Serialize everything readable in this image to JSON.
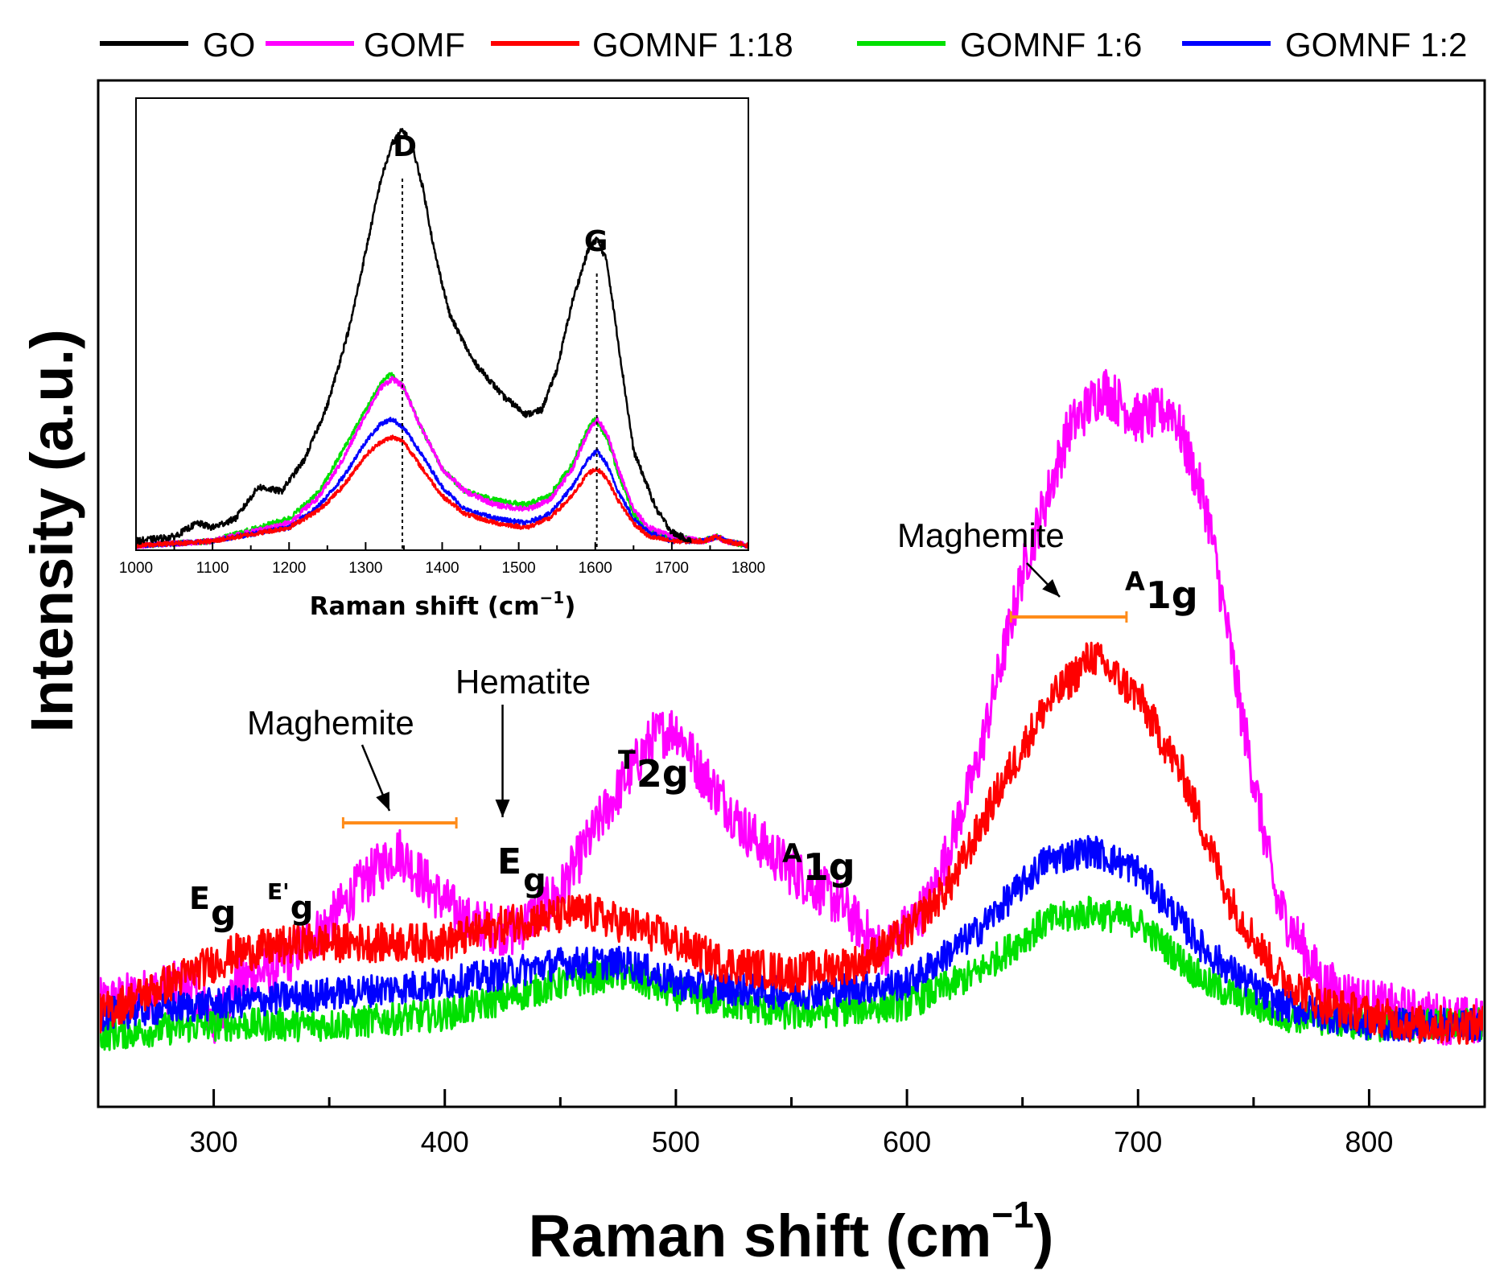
{
  "chart_data": [
    {
      "type": "line",
      "panel": "main",
      "xlabel": "Raman shift (cm",
      "xlabel_sup": "−1",
      "xlabel_close": ")",
      "ylabel": "Intensity (a.u.)",
      "xlim": [
        250,
        850
      ],
      "ylim": [
        0,
        100
      ],
      "xticks": [
        300,
        400,
        500,
        600,
        700,
        800
      ],
      "xtick_labels": [
        "300",
        "400",
        "500",
        "600",
        "700",
        "800"
      ],
      "legend_position": "top",
      "noise": [
        1.6,
        2.5,
        1.9,
        1.6,
        1.6
      ],
      "series": [
        {
          "name": "GO",
          "color": "#000000",
          "x": [],
          "y": []
        },
        {
          "name": "GOMF",
          "color": "#ff00ff",
          "x": [
            250,
            270,
            290,
            300,
            310,
            330,
            350,
            365,
            380,
            395,
            410,
            430,
            450,
            470,
            490,
            500,
            510,
            530,
            550,
            570,
            590,
            610,
            630,
            650,
            670,
            685,
            700,
            715,
            730,
            745,
            760,
            780,
            800,
            820,
            850
          ],
          "y": [
            10,
            11,
            12,
            8,
            12,
            14,
            18,
            22,
            25,
            21,
            18,
            17,
            21,
            29,
            36,
            37,
            33,
            27,
            23,
            20,
            15,
            20,
            33,
            52,
            66,
            70,
            67,
            68,
            58,
            38,
            20,
            12,
            10,
            9,
            8
          ]
        },
        {
          "name": "GOMNF 1:18",
          "color": "#ff0000",
          "x": [
            250,
            280,
            310,
            340,
            370,
            400,
            430,
            460,
            490,
            520,
            550,
            580,
            600,
            620,
            640,
            660,
            680,
            700,
            720,
            740,
            760,
            780,
            800,
            820,
            850
          ],
          "y": [
            9,
            12,
            15,
            16,
            16,
            16,
            18,
            19,
            17,
            14,
            13,
            14,
            17,
            22,
            31,
            39,
            44,
            40,
            32,
            20,
            13,
            10,
            9,
            8,
            8
          ]
        },
        {
          "name": "GOMNF 1:6",
          "color": "#00e000",
          "x": [
            250,
            300,
            350,
            400,
            450,
            475,
            500,
            550,
            600,
            630,
            660,
            680,
            700,
            730,
            760,
            800,
            850
          ],
          "y": [
            7,
            8,
            8,
            9,
            12,
            13,
            11,
            9,
            10,
            13,
            18,
            19,
            18,
            12,
            9,
            8,
            8
          ]
        },
        {
          "name": "GOMNF 1:2",
          "color": "#0000ff",
          "x": [
            250,
            300,
            350,
            400,
            450,
            480,
            500,
            550,
            600,
            630,
            660,
            680,
            700,
            730,
            760,
            800,
            850
          ],
          "y": [
            9,
            10,
            11,
            12,
            14,
            14,
            12,
            11,
            12,
            17,
            24,
            25,
            23,
            15,
            10,
            8,
            8
          ]
        }
      ],
      "annotations": {
        "maghemite_low": {
          "text": "Maghemite",
          "range": [
            356,
            405
          ]
        },
        "hematite": {
          "text": "Hematite",
          "x": 425
        },
        "maghemite_high": {
          "text": "Maghemite",
          "range": [
            645,
            695
          ]
        },
        "peaks": [
          {
            "main": "E",
            "sub": "g",
            "x": 300
          },
          {
            "main": "E'",
            "sub": "g",
            "x": 338
          },
          {
            "main": "E",
            "sub": "g",
            "x": 430
          },
          {
            "main": "T",
            "sub": "2g",
            "x": 505
          },
          {
            "main": "A",
            "sub": "1g",
            "x": 568
          },
          {
            "main": "A",
            "sub": "1g",
            "x": 712
          }
        ]
      }
    },
    {
      "type": "line",
      "panel": "inset",
      "xlabel": "Raman shift (cm",
      "xlabel_sup": "−1",
      "xlabel_close": ")",
      "xlim": [
        1000,
        1800
      ],
      "ylim": [
        0,
        100
      ],
      "xticks": [
        1000,
        1100,
        1200,
        1300,
        1400,
        1500,
        1600,
        1700,
        1800
      ],
      "xtick_labels": [
        "1000",
        "1100",
        "1200",
        "1300",
        "1400",
        "1500",
        "1600",
        "1700",
        "1800"
      ],
      "peak_lines": [
        {
          "label": "D",
          "x": 1348
        },
        {
          "label": "G",
          "x": 1602
        }
      ],
      "noise": [
        0.7,
        0.6,
        0.5,
        0.6,
        0.5
      ],
      "series": [
        {
          "name": "GO",
          "color": "#000000",
          "x": [
            1000,
            1050,
            1080,
            1100,
            1130,
            1160,
            1190,
            1220,
            1250,
            1280,
            1300,
            1320,
            1335,
            1348,
            1360,
            1375,
            1390,
            1410,
            1440,
            1480,
            1510,
            1530,
            1550,
            1570,
            1590,
            1602,
            1615,
            1630,
            1650,
            1680,
            1700,
            1725
          ],
          "y": [
            2,
            3,
            6,
            5,
            7,
            14,
            13,
            20,
            32,
            50,
            66,
            82,
            90,
            93,
            90,
            80,
            66,
            52,
            42,
            34,
            30,
            31,
            40,
            55,
            66,
            69,
            64,
            46,
            22,
            9,
            4,
            2
          ]
        },
        {
          "name": "GOMF",
          "color": "#ff00ff",
          "x": [
            1000,
            1100,
            1200,
            1240,
            1270,
            1300,
            1320,
            1335,
            1350,
            1370,
            1400,
            1430,
            1470,
            1510,
            1540,
            1570,
            1590,
            1602,
            1615,
            1630,
            1650,
            1670,
            1700,
            1740,
            1760,
            1770,
            1800
          ],
          "y": [
            1,
            2,
            6,
            12,
            20,
            30,
            36,
            38,
            36,
            28,
            18,
            13,
            10,
            9,
            11,
            18,
            26,
            29,
            26,
            18,
            9,
            5,
            3,
            2,
            3,
            2,
            1
          ]
        },
        {
          "name": "GOMNF 1:18",
          "color": "#ff0000",
          "x": [
            1000,
            1100,
            1200,
            1240,
            1270,
            1300,
            1320,
            1335,
            1350,
            1370,
            1400,
            1430,
            1470,
            1510,
            1540,
            1570,
            1590,
            1602,
            1615,
            1630,
            1650,
            1670,
            1700,
            1740,
            1760,
            1770,
            1800
          ],
          "y": [
            1,
            2,
            5,
            9,
            14,
            21,
            24,
            25,
            24,
            19,
            12,
            8,
            6,
            5,
            7,
            12,
            17,
            18,
            16,
            11,
            6,
            3,
            2,
            2,
            3,
            2,
            1
          ]
        },
        {
          "name": "GOMNF 1:6",
          "color": "#00e000",
          "x": [
            1000,
            1100,
            1200,
            1240,
            1270,
            1300,
            1320,
            1332,
            1350,
            1370,
            1400,
            1430,
            1470,
            1510,
            1540,
            1570,
            1590,
            1600,
            1615,
            1630,
            1650,
            1670,
            1700,
            1740,
            1760,
            1770,
            1800
          ],
          "y": [
            1,
            2,
            7,
            13,
            22,
            31,
            37,
            39,
            36,
            28,
            18,
            13,
            11,
            10,
            12,
            19,
            27,
            29,
            25,
            17,
            8,
            4,
            3,
            2,
            3,
            2,
            1
          ]
        },
        {
          "name": "GOMNF 1:2",
          "color": "#0000ff",
          "x": [
            1000,
            1100,
            1200,
            1240,
            1270,
            1300,
            1320,
            1335,
            1350,
            1370,
            1400,
            1430,
            1470,
            1510,
            1540,
            1570,
            1590,
            1602,
            1615,
            1630,
            1650,
            1670,
            1700,
            1740,
            1760,
            1770,
            1800
          ],
          "y": [
            1,
            2,
            5,
            10,
            16,
            24,
            28,
            29,
            27,
            22,
            14,
            9,
            7,
            6,
            8,
            14,
            20,
            22,
            19,
            13,
            7,
            4,
            2,
            2,
            3,
            2,
            1
          ]
        }
      ]
    }
  ]
}
